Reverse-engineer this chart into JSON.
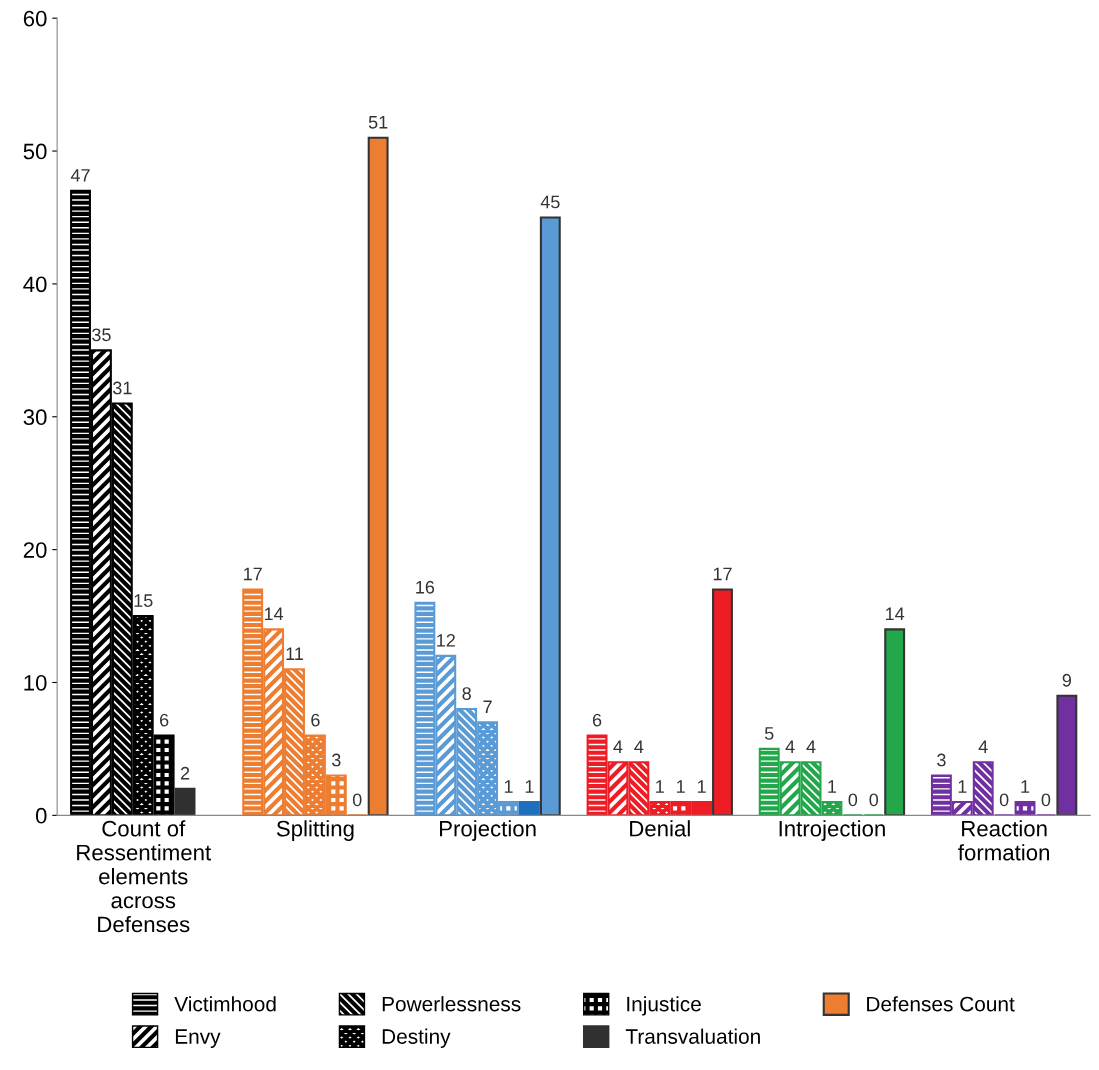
{
  "chart_data": {
    "type": "bar",
    "categories": [
      "Count of Ressentiment elements across Defenses",
      "Splitting",
      "Projection",
      "Denial",
      "Introjection",
      "Reaction formation"
    ],
    "series": [
      {
        "name": "Victimhood",
        "color": "#000000",
        "colors": [
          "#000000",
          "#ed7d31",
          "#5b9bd5",
          "#ee1c24",
          "#22a84a",
          "#7030a0"
        ],
        "values": [
          47,
          17,
          16,
          6,
          5,
          3
        ]
      },
      {
        "name": "Envy",
        "color": "#000000",
        "colors": [
          "#000000",
          "#ed7d31",
          "#5b9bd5",
          "#ee1c24",
          "#22a84a",
          "#7030a0"
        ],
        "values": [
          35,
          14,
          12,
          4,
          4,
          1
        ]
      },
      {
        "name": "Powerlessness",
        "color": "#000000",
        "colors": [
          "#000000",
          "#ed7d31",
          "#5b9bd5",
          "#ee1c24",
          "#22a84a",
          "#7030a0"
        ],
        "values": [
          31,
          11,
          8,
          4,
          4,
          4
        ]
      },
      {
        "name": "Destiny",
        "color": "#000000",
        "colors": [
          "#000000",
          "#ed7d31",
          "#5b9bd5",
          "#ee1c24",
          "#22a84a",
          "#7030a0"
        ],
        "values": [
          15,
          6,
          7,
          1,
          1,
          0
        ]
      },
      {
        "name": "Injustice",
        "color": "#000000",
        "colors": [
          "#000000",
          "#ed7d31",
          "#5b9bd5",
          "#ee1c24",
          "#22a84a",
          "#7030a0"
        ],
        "values": [
          6,
          3,
          1,
          1,
          0,
          1
        ]
      },
      {
        "name": "Transvaluation",
        "color": "#303030",
        "colors": [
          "#303030",
          "#ed7d31",
          "#1f6fbf",
          "#ee1c24",
          "#22a84a",
          "#7030a0"
        ],
        "values": [
          2,
          0,
          1,
          1,
          0,
          0
        ]
      },
      {
        "name": "Defenses Count",
        "color": "#ed7d31",
        "colors": [
          "#000000",
          "#ed7d31",
          "#5b9bd5",
          "#ee1c24",
          "#22a84a",
          "#7030a0"
        ],
        "values": [
          null,
          51,
          45,
          17,
          14,
          9
        ]
      }
    ],
    "ylim": [
      0,
      60
    ],
    "yticks": [
      0,
      10,
      20,
      30,
      40,
      50,
      60
    ],
    "grid": false,
    "legend": "bottom",
    "data_labels": true
  }
}
